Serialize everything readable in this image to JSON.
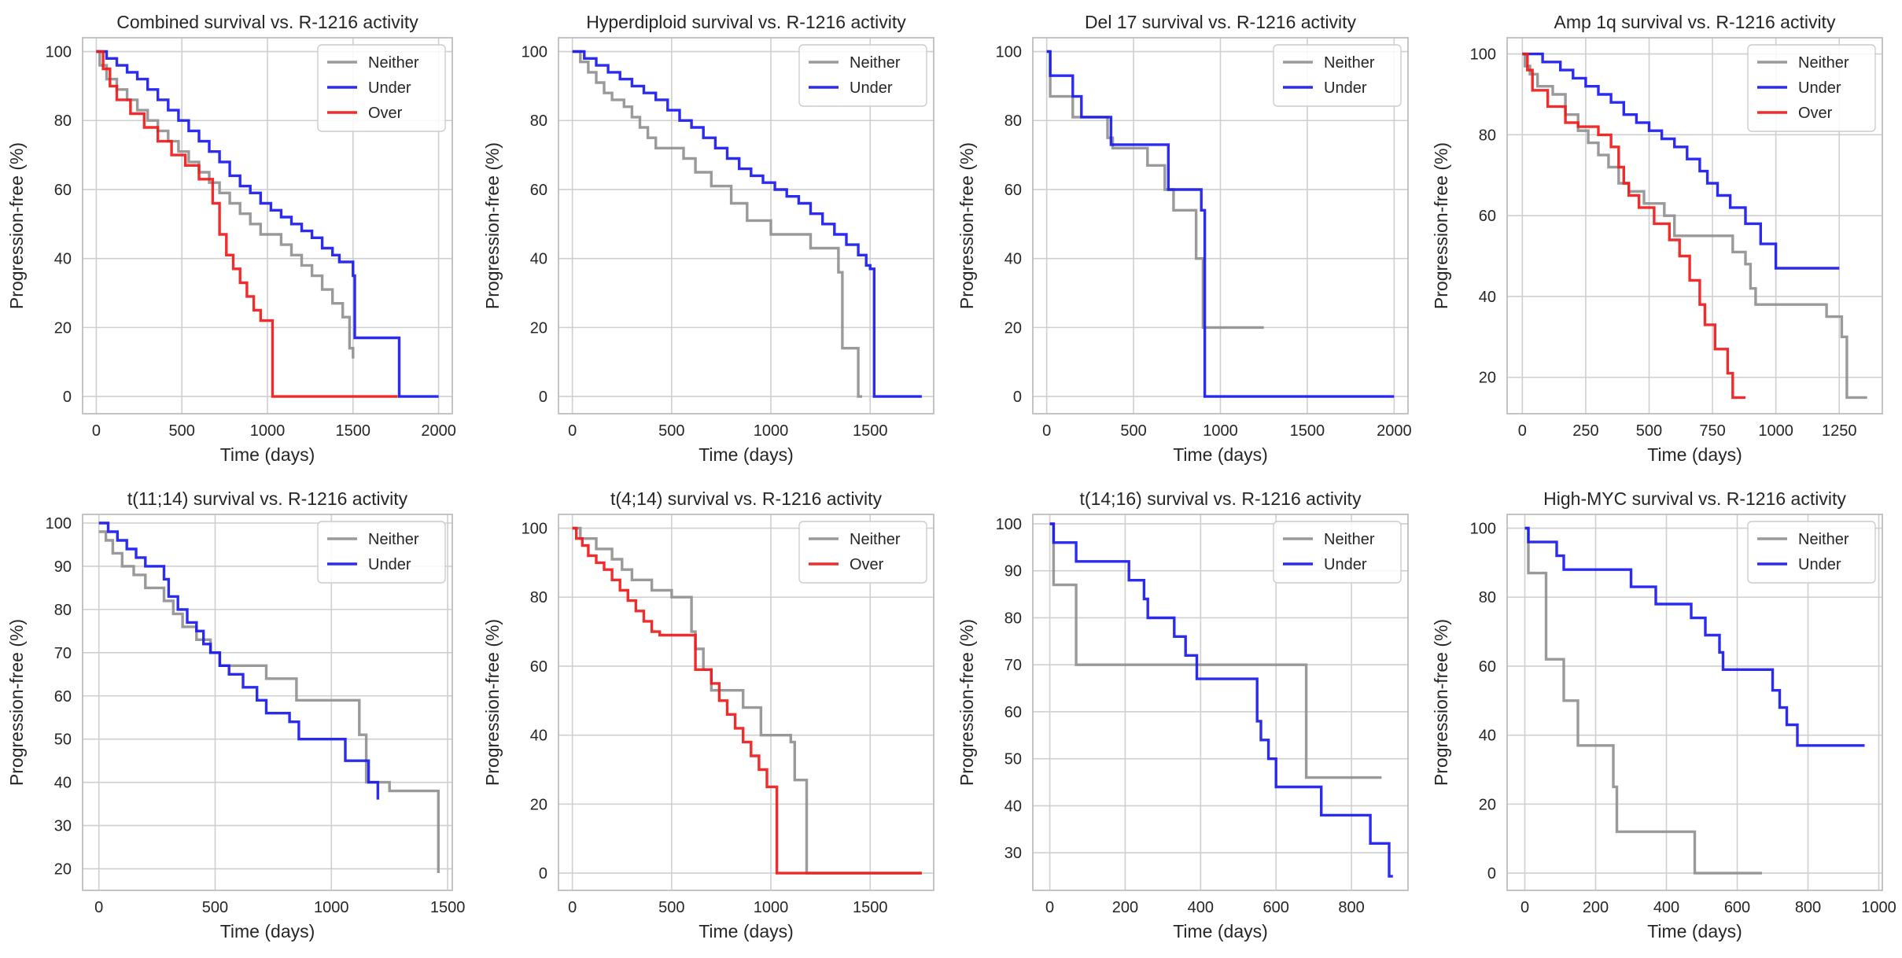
{
  "chart_data": [
    {
      "type": "line",
      "title": "Combined survival vs. R-1216 activity",
      "xlabel": "Time (days)",
      "ylabel": "Progression-free (%)",
      "xlim": [
        -80,
        2080
      ],
      "ylim": [
        -5,
        104
      ],
      "xticks": [
        0,
        500,
        1000,
        1500,
        2000
      ],
      "yticks": [
        0,
        20,
        40,
        60,
        80,
        100
      ],
      "xtick_labels": [
        "0",
        "500",
        "1000",
        "1500",
        "2000"
      ],
      "ytick_labels": [
        "0",
        "20",
        "40",
        "60",
        "80",
        "100"
      ],
      "legend": [
        "Neither",
        "Under",
        "Over"
      ],
      "series": [
        {
          "name": "Neither",
          "x": [
            0,
            20,
            60,
            120,
            180,
            240,
            300,
            360,
            420,
            480,
            540,
            600,
            660,
            720,
            780,
            840,
            900,
            960,
            1080,
            1140,
            1200,
            1260,
            1320,
            1380,
            1440,
            1480,
            1500
          ],
          "y": [
            100,
            96,
            92,
            89,
            86,
            83,
            80,
            77,
            74,
            71,
            68,
            65,
            62,
            59,
            56,
            53,
            50,
            47,
            44,
            41,
            38,
            35,
            31,
            27,
            23,
            14,
            11
          ]
        },
        {
          "name": "Under",
          "x": [
            0,
            60,
            120,
            180,
            240,
            300,
            360,
            420,
            480,
            540,
            600,
            660,
            720,
            780,
            840,
            900,
            960,
            1020,
            1080,
            1140,
            1200,
            1260,
            1320,
            1380,
            1420,
            1500,
            1510,
            1760,
            1770,
            2000
          ],
          "y": [
            100,
            98,
            96,
            94,
            92,
            89,
            86,
            83,
            80,
            77,
            74,
            71,
            68,
            64,
            61,
            59,
            56,
            54,
            52,
            50,
            48,
            46,
            43,
            41,
            39,
            35,
            17,
            17,
            0,
            0
          ]
        },
        {
          "name": "Over",
          "x": [
            0,
            40,
            80,
            120,
            200,
            280,
            360,
            440,
            520,
            600,
            680,
            720,
            760,
            800,
            840,
            880,
            920,
            960,
            1010,
            1030,
            1760
          ],
          "y": [
            100,
            95,
            90,
            86,
            82,
            78,
            74,
            70,
            67,
            63,
            56,
            47,
            41,
            37,
            33,
            29,
            25,
            22,
            22,
            0,
            0
          ]
        }
      ]
    },
    {
      "type": "line",
      "title": "Hyperdiploid survival vs. R-1216 activity",
      "xlabel": "Time (days)",
      "ylabel": "Progression-free (%)",
      "xlim": [
        -70,
        1820
      ],
      "ylim": [
        -5,
        104
      ],
      "xticks": [
        0,
        500,
        1000,
        1500
      ],
      "yticks": [
        0,
        20,
        40,
        60,
        80,
        100
      ],
      "xtick_labels": [
        "0",
        "500",
        "1000",
        "1500"
      ],
      "ytick_labels": [
        "0",
        "20",
        "40",
        "60",
        "80",
        "100"
      ],
      "legend": [
        "Neither",
        "Under"
      ],
      "series": [
        {
          "name": "Neither",
          "x": [
            0,
            40,
            80,
            120,
            160,
            200,
            260,
            300,
            340,
            380,
            420,
            480,
            560,
            620,
            700,
            800,
            880,
            1000,
            1200,
            1340,
            1360,
            1440,
            1460
          ],
          "y": [
            100,
            97,
            94,
            91,
            88,
            86,
            84,
            81,
            78,
            75,
            72,
            72,
            69,
            65,
            61,
            56,
            51,
            47,
            43,
            36,
            14,
            0,
            0
          ]
        },
        {
          "name": "Under",
          "x": [
            0,
            60,
            120,
            180,
            240,
            300,
            360,
            420,
            480,
            540,
            600,
            660,
            720,
            780,
            840,
            900,
            960,
            1020,
            1080,
            1140,
            1200,
            1260,
            1320,
            1380,
            1440,
            1480,
            1500,
            1520,
            1760
          ],
          "y": [
            100,
            98,
            96,
            94,
            92,
            90,
            88,
            86,
            83,
            80,
            78,
            75,
            72,
            69,
            66,
            64,
            62,
            60,
            58,
            56,
            53,
            50,
            47,
            44,
            41,
            38,
            37,
            0,
            0
          ]
        }
      ]
    },
    {
      "type": "line",
      "title": "Del 17 survival vs. R-1216 activity",
      "xlabel": "Time (days)",
      "ylabel": "Progression-free (%)",
      "xlim": [
        -80,
        2080
      ],
      "ylim": [
        -5,
        104
      ],
      "xticks": [
        0,
        500,
        1000,
        1500,
        2000
      ],
      "yticks": [
        0,
        20,
        40,
        60,
        80,
        100
      ],
      "xtick_labels": [
        "0",
        "500",
        "1000",
        "1500",
        "2000"
      ],
      "ytick_labels": [
        "0",
        "20",
        "40",
        "60",
        "80",
        "100"
      ],
      "legend": [
        "Neither",
        "Under"
      ],
      "series": [
        {
          "name": "Neither",
          "x": [
            0,
            20,
            150,
            350,
            380,
            580,
            680,
            730,
            860,
            900,
            1250
          ],
          "y": [
            100,
            87,
            81,
            75,
            72,
            67,
            60,
            54,
            40,
            20,
            20
          ]
        },
        {
          "name": "Under",
          "x": [
            0,
            20,
            150,
            200,
            370,
            700,
            890,
            910,
            2000
          ],
          "y": [
            100,
            93,
            87,
            81,
            73,
            60,
            54,
            0,
            0
          ]
        }
      ]
    },
    {
      "type": "line",
      "title": "Amp 1q survival vs. R-1216 activity",
      "xlabel": "Time (days)",
      "ylabel": "Progression-free (%)",
      "xlim": [
        -60,
        1420
      ],
      "ylim": [
        11,
        104
      ],
      "xticks": [
        0,
        250,
        500,
        750,
        1000,
        1250
      ],
      "yticks": [
        20,
        40,
        60,
        80,
        100
      ],
      "xtick_labels": [
        "0",
        "250",
        "500",
        "750",
        "1000",
        "1250"
      ],
      "ytick_labels": [
        "20",
        "40",
        "60",
        "80",
        "100"
      ],
      "legend": [
        "Neither",
        "Under",
        "Over"
      ],
      "series": [
        {
          "name": "Neither",
          "x": [
            0,
            10,
            30,
            60,
            120,
            170,
            220,
            260,
            300,
            340,
            380,
            420,
            480,
            560,
            600,
            780,
            830,
            880,
            900,
            920,
            1200,
            1260,
            1280,
            1360
          ],
          "y": [
            100,
            97,
            95,
            92,
            90,
            85,
            81,
            78,
            75,
            72,
            68,
            66,
            63,
            60,
            55,
            55,
            51,
            48,
            42,
            38,
            35,
            30,
            15,
            15
          ]
        },
        {
          "name": "Under",
          "x": [
            0,
            80,
            150,
            200,
            250,
            300,
            350,
            400,
            450,
            500,
            550,
            600,
            650,
            700,
            730,
            770,
            820,
            880,
            940,
            1000,
            1250
          ],
          "y": [
            100,
            98,
            96,
            94,
            92,
            90,
            88,
            85,
            83,
            81,
            79,
            77,
            74,
            71,
            68,
            65,
            62,
            58,
            53,
            47,
            47
          ]
        },
        {
          "name": "Over",
          "x": [
            0,
            20,
            40,
            100,
            170,
            220,
            300,
            350,
            380,
            400,
            420,
            460,
            520,
            580,
            620,
            660,
            700,
            720,
            760,
            810,
            830,
            880
          ],
          "y": [
            100,
            96,
            91,
            87,
            83,
            82,
            80,
            77,
            72,
            68,
            65,
            62,
            58,
            54,
            50,
            44,
            38,
            33,
            27,
            21,
            15,
            15
          ]
        }
      ]
    },
    {
      "type": "line",
      "title": "t(11;14) survival vs. R-1216 activity",
      "xlabel": "Time (days)",
      "ylabel": "Progression-free (%)",
      "xlim": [
        -70,
        1520
      ],
      "ylim": [
        15,
        102
      ],
      "xticks": [
        0,
        500,
        1000,
        1500
      ],
      "yticks": [
        20,
        30,
        40,
        50,
        60,
        70,
        80,
        90,
        100
      ],
      "xtick_labels": [
        "0",
        "500",
        "1000",
        "1500"
      ],
      "ytick_labels": [
        "20",
        "30",
        "40",
        "50",
        "60",
        "70",
        "80",
        "90",
        "100"
      ],
      "legend": [
        "Neither",
        "Under"
      ],
      "series": [
        {
          "name": "Neither",
          "x": [
            0,
            30,
            60,
            100,
            150,
            200,
            280,
            320,
            360,
            420,
            480,
            520,
            720,
            850,
            1120,
            1150,
            1250,
            1460
          ],
          "y": [
            98,
            96,
            93,
            90,
            88,
            85,
            82,
            79,
            76,
            73,
            70,
            67,
            64,
            59,
            51,
            40,
            38,
            19
          ]
        },
        {
          "name": "Under",
          "x": [
            0,
            40,
            80,
            120,
            160,
            200,
            280,
            300,
            340,
            380,
            420,
            450,
            480,
            520,
            560,
            620,
            680,
            720,
            820,
            860,
            1060,
            1160,
            1200
          ],
          "y": [
            100,
            98,
            96,
            94,
            92,
            90,
            87,
            83,
            80,
            77,
            75,
            72,
            70,
            67,
            65,
            62,
            59,
            56,
            54,
            50,
            45,
            40,
            36
          ]
        }
      ]
    },
    {
      "type": "line",
      "title": "t(4;14) survival vs. R-1216 activity",
      "xlabel": "Time (days)",
      "ylabel": "Progression-free (%)",
      "xlim": [
        -70,
        1820
      ],
      "ylim": [
        -5,
        104
      ],
      "xticks": [
        0,
        500,
        1000,
        1500
      ],
      "yticks": [
        0,
        20,
        40,
        60,
        80,
        100
      ],
      "xtick_labels": [
        "0",
        "500",
        "1000",
        "1500"
      ],
      "ytick_labels": [
        "0",
        "20",
        "40",
        "60",
        "80",
        "100"
      ],
      "legend": [
        "Neither",
        "Over"
      ],
      "series": [
        {
          "name": "Neither",
          "x": [
            0,
            40,
            120,
            200,
            250,
            300,
            400,
            500,
            580,
            600,
            620,
            660,
            700,
            860,
            950,
            1100,
            1120,
            1170,
            1180,
            1760
          ],
          "y": [
            100,
            97,
            94,
            91,
            88,
            85,
            82,
            80,
            80,
            70,
            65,
            59,
            53,
            48,
            40,
            38,
            27,
            27,
            0,
            0
          ]
        },
        {
          "name": "Over",
          "x": [
            0,
            20,
            50,
            80,
            120,
            160,
            200,
            240,
            280,
            320,
            360,
            400,
            440,
            500,
            620,
            700,
            740,
            780,
            820,
            860,
            900,
            940,
            980,
            1030,
            1760
          ],
          "y": [
            100,
            97,
            95,
            92,
            90,
            88,
            85,
            82,
            79,
            76,
            73,
            70,
            69,
            69,
            59,
            55,
            50,
            46,
            42,
            38,
            34,
            30,
            25,
            0,
            0
          ]
        }
      ]
    },
    {
      "type": "line",
      "title": "t(14;16) survival vs. R-1216 activity",
      "xlabel": "Time (days)",
      "ylabel": "Progression-free (%)",
      "xlim": [
        -45,
        950
      ],
      "ylim": [
        22,
        102
      ],
      "xticks": [
        0,
        200,
        400,
        600,
        800
      ],
      "yticks": [
        30,
        40,
        50,
        60,
        70,
        80,
        90,
        100
      ],
      "xtick_labels": [
        "0",
        "200",
        "400",
        "600",
        "800"
      ],
      "ytick_labels": [
        "30",
        "40",
        "50",
        "60",
        "70",
        "80",
        "90",
        "100"
      ],
      "legend": [
        "Neither",
        "Under"
      ],
      "series": [
        {
          "name": "Neither",
          "x": [
            0,
            10,
            55,
            70,
            660,
            680,
            880
          ],
          "y": [
            100,
            87,
            87,
            70,
            70,
            46,
            46
          ]
        },
        {
          "name": "Under",
          "x": [
            0,
            10,
            70,
            210,
            250,
            260,
            330,
            360,
            390,
            550,
            560,
            580,
            600,
            720,
            850,
            900,
            910
          ],
          "y": [
            100,
            96,
            92,
            88,
            84,
            80,
            76,
            72,
            67,
            58,
            54,
            50,
            44,
            38,
            32,
            25,
            25
          ]
        }
      ]
    },
    {
      "type": "line",
      "title": "High-MYC survival vs. R-1216 activity",
      "xlabel": "Time (days)",
      "ylabel": "Progression-free (%)",
      "xlim": [
        -50,
        1010
      ],
      "ylim": [
        -5,
        104
      ],
      "xticks": [
        0,
        200,
        400,
        600,
        800,
        1000
      ],
      "yticks": [
        0,
        20,
        40,
        60,
        80,
        100
      ],
      "xtick_labels": [
        "0",
        "200",
        "400",
        "600",
        "800",
        "1000"
      ],
      "ytick_labels": [
        "0",
        "20",
        "40",
        "60",
        "80",
        "100"
      ],
      "legend": [
        "Neither",
        "Under"
      ],
      "series": [
        {
          "name": "Neither",
          "x": [
            0,
            10,
            60,
            80,
            110,
            150,
            250,
            260,
            470,
            480,
            670
          ],
          "y": [
            100,
            87,
            62,
            62,
            50,
            37,
            25,
            12,
            12,
            0,
            0
          ]
        },
        {
          "name": "Under",
          "x": [
            0,
            10,
            90,
            110,
            300,
            370,
            470,
            510,
            550,
            560,
            700,
            720,
            740,
            770,
            960
          ],
          "y": [
            100,
            96,
            92,
            88,
            83,
            78,
            74,
            69,
            64,
            59,
            53,
            48,
            43,
            37,
            37
          ]
        }
      ]
    }
  ],
  "colors": {
    "Neither": "#919191",
    "Under": "#1a1af0",
    "Over": "#f01a1a",
    "grid": "#cfcfcf",
    "spine": "#bdbdbd",
    "text": "#262626"
  }
}
